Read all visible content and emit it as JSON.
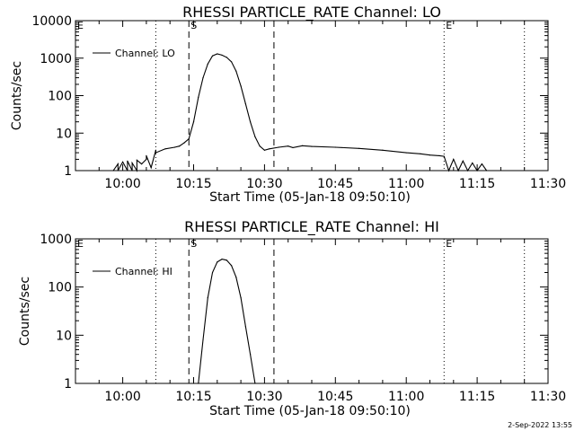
{
  "timestamp": "2-Sep-2022 13:55",
  "chart_data": [
    {
      "type": "line",
      "title": "RHESSI PARTICLE_RATE Channel: LO",
      "xlabel": "Start Time (05-Jan-18 09:50:10)",
      "ylabel": "Counts/sec",
      "yscale": "log",
      "xlim": [
        "09:50",
        "11:30"
      ],
      "ylim": [
        1,
        10000
      ],
      "x_ticks": [
        "10:00",
        "10:15",
        "10:30",
        "10:45",
        "11:00",
        "11:15",
        "11:30"
      ],
      "y_ticks": [
        {
          "value": 1,
          "label": "1"
        },
        {
          "value": 10,
          "label": "10"
        },
        {
          "value": 100,
          "label": "100"
        },
        {
          "value": 1000,
          "label": "1000"
        },
        {
          "value": 10000,
          "label": "10000"
        }
      ],
      "legend": {
        "location": "top-left",
        "entries": [
          "Channel: LO"
        ]
      },
      "markers": {
        "dashed": [
          "10:14",
          "10:32"
        ],
        "dotted": [
          "10:07",
          "11:08",
          "11:25"
        ],
        "labels": [
          {
            "text": "S",
            "x": "10:14"
          },
          {
            "text": "E",
            "x": "11:08"
          },
          {
            "text": "E",
            "x": "09:50"
          }
        ]
      },
      "series": [
        {
          "name": "Channel: LO",
          "x": [
            "09:58",
            "09:59",
            "09:59",
            "10:00",
            "10:01",
            "10:01",
            "10:02",
            "10:02",
            "10:03",
            "10:03",
            "10:04",
            "10:05",
            "10:05",
            "10:06",
            "10:07",
            "10:07",
            "10:09",
            "10:11",
            "10:12",
            "10:13",
            "10:14",
            "10:15",
            "10:16",
            "10:17",
            "10:18",
            "10:19",
            "10:20",
            "10:21",
            "10:22",
            "10:23",
            "10:24",
            "10:25",
            "10:26",
            "10:27",
            "10:28",
            "10:29",
            "10:30",
            "10:31",
            "10:33",
            "10:35",
            "10:36",
            "10:38",
            "10:40",
            "10:45",
            "10:50",
            "10:55",
            "11:00",
            "11:03",
            "11:05",
            "11:07",
            "11:08",
            "11:09",
            "11:10",
            "11:11",
            "11:12",
            "11:13",
            "11:14",
            "11:15",
            "11:16",
            "11:17"
          ],
          "y": [
            1,
            1.5,
            1,
            1.7,
            1,
            1.8,
            1,
            1.6,
            1,
            1.9,
            1.5,
            2,
            2.5,
            1.2,
            3.5,
            3,
            3.8,
            4.2,
            4.5,
            5.5,
            7,
            20,
            90,
            300,
            700,
            1150,
            1300,
            1200,
            1050,
            800,
            450,
            180,
            60,
            20,
            8,
            4.5,
            3.5,
            3.8,
            4.2,
            4.5,
            4.1,
            4.6,
            4.4,
            4.2,
            3.9,
            3.5,
            3,
            2.8,
            2.6,
            2.5,
            2.4,
            1,
            2,
            1,
            1.8,
            1,
            1.6,
            1,
            1.5,
            1
          ]
        }
      ]
    },
    {
      "type": "line",
      "title": "RHESSI PARTICLE_RATE Channel: HI",
      "xlabel": "Start Time (05-Jan-18 09:50:10)",
      "ylabel": "Counts/sec",
      "yscale": "log",
      "xlim": [
        "09:50",
        "11:30"
      ],
      "ylim": [
        1,
        1000
      ],
      "x_ticks": [
        "10:00",
        "10:15",
        "10:30",
        "10:45",
        "11:00",
        "11:15",
        "11:30"
      ],
      "y_ticks": [
        {
          "value": 1,
          "label": "1"
        },
        {
          "value": 10,
          "label": "10"
        },
        {
          "value": 100,
          "label": "100"
        },
        {
          "value": 1000,
          "label": "1000"
        }
      ],
      "legend": {
        "location": "top-left",
        "entries": [
          "Channel: HI"
        ]
      },
      "markers": {
        "dashed": [
          "10:14",
          "10:32"
        ],
        "dotted": [
          "10:07",
          "11:08",
          "11:25"
        ],
        "labels": [
          {
            "text": "S",
            "x": "10:14"
          },
          {
            "text": "E",
            "x": "11:08"
          },
          {
            "text": "E",
            "x": "09:50"
          }
        ]
      },
      "series": [
        {
          "name": "Channel: HI",
          "x": [
            "10:16",
            "10:17",
            "10:18",
            "10:19",
            "10:20",
            "10:21",
            "10:22",
            "10:23",
            "10:24",
            "10:25",
            "10:26",
            "10:27",
            "10:28"
          ],
          "y": [
            1,
            8,
            60,
            200,
            330,
            380,
            360,
            280,
            160,
            60,
            15,
            4,
            1
          ]
        }
      ]
    }
  ]
}
